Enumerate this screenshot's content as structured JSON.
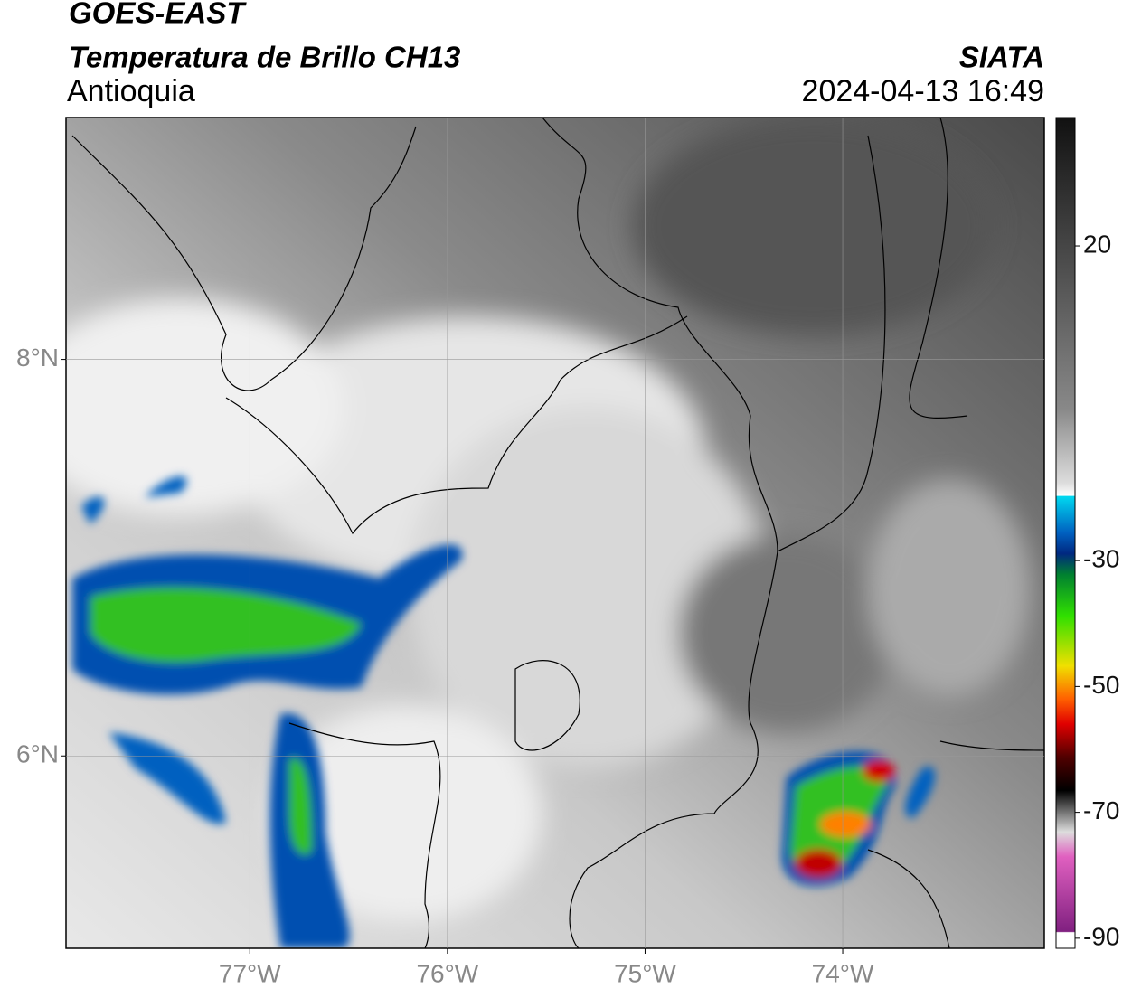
{
  "header": {
    "satellite": "GOES-EAST",
    "product": "Temperatura de Brillo CH13",
    "region": "Antioquia",
    "agency": "SIATA",
    "datetime": "2024-04-13 16:49"
  },
  "map": {
    "xlim": [
      -77.93,
      -72.98
    ],
    "ylim": [
      5.03,
      9.22
    ],
    "xticks": [
      {
        "value": -77,
        "label": "77°W"
      },
      {
        "value": -76,
        "label": "76°W"
      },
      {
        "value": -75,
        "label": "75°W"
      },
      {
        "value": -74,
        "label": "74°W"
      }
    ],
    "yticks": [
      {
        "value": 6,
        "label": "6°N"
      },
      {
        "value": 8,
        "label": "8°N"
      }
    ],
    "grid": true
  },
  "colorbar": {
    "lim": [
      -91.6,
      40.4
    ],
    "ticks": [
      -90,
      -70,
      -50,
      -30,
      20
    ]
  }
}
